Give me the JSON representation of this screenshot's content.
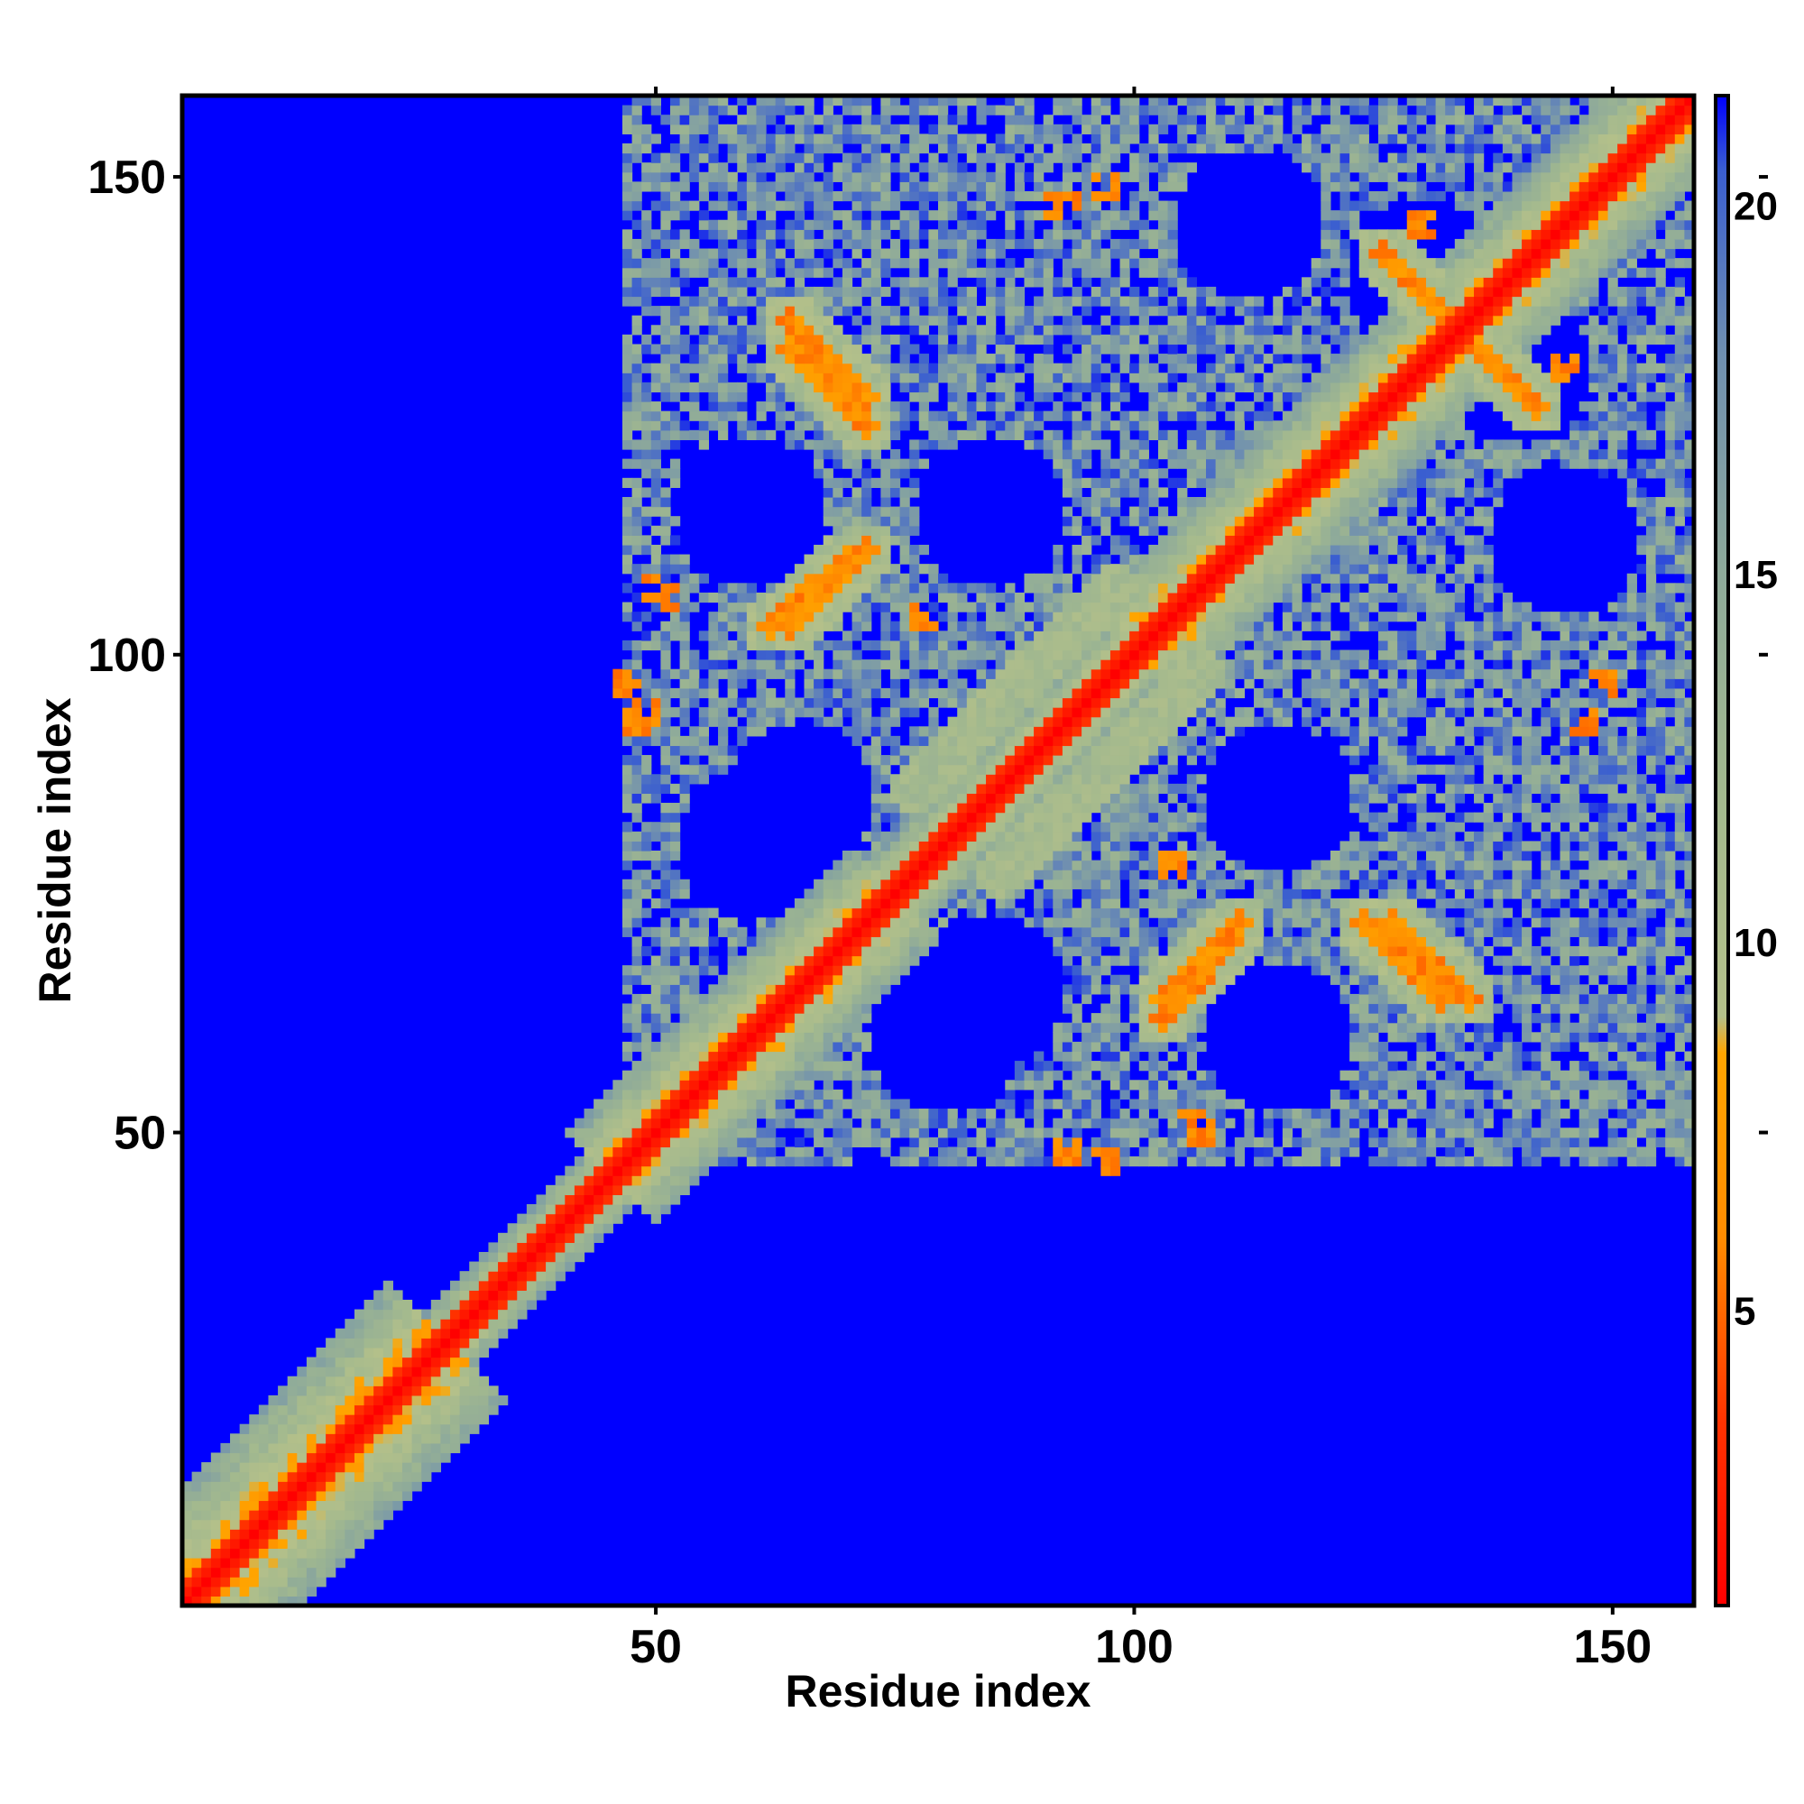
{
  "chart_data": {
    "type": "heatmap",
    "title": "",
    "xlabel": "Residue index",
    "ylabel": "Residue index",
    "xlim": [
      1,
      158
    ],
    "ylim": [
      1,
      158
    ],
    "xticks": [
      50,
      100,
      150
    ],
    "yticks": [
      50,
      100,
      150
    ],
    "grid": false,
    "matrix_size": 158,
    "value_range": [
      1,
      21
    ],
    "colorbar": {
      "ticks": [
        5,
        10,
        15,
        20
      ],
      "range": [
        1,
        21.5
      ],
      "stops": [
        {
          "value": 1,
          "color": "#ff0000"
        },
        {
          "value": 3.5,
          "color": "#ff3300"
        },
        {
          "value": 6,
          "color": "#ff8c00"
        },
        {
          "value": 8.5,
          "color": "#ffa500"
        },
        {
          "value": 9,
          "color": "#b4c08a"
        },
        {
          "value": 12,
          "color": "#a3b98e"
        },
        {
          "value": 15,
          "color": "#8eaa9a"
        },
        {
          "value": 18,
          "color": "#6f8fb0"
        },
        {
          "value": 20.5,
          "color": "#3a5ed0"
        },
        {
          "value": 21.5,
          "color": "#0000ff"
        }
      ]
    },
    "background_color": "#0000ff",
    "description_of_features": {
      "diagonal_band_width": 4,
      "near_diagonal_halos": [
        {
          "start": 1,
          "end": 28,
          "width": 12
        },
        {
          "start": 28,
          "end": 45,
          "width": 5
        },
        {
          "start": 45,
          "end": 75,
          "width": 9
        },
        {
          "start": 75,
          "end": 100,
          "width": 6
        },
        {
          "start": 100,
          "end": 158,
          "width": 9
        }
      ],
      "antiparallel_contacts": [
        {
          "i_range": [
            64,
            72
          ],
          "j_range": [
            132,
            124
          ]
        },
        {
          "i_range": [
            127,
            135
          ],
          "j_range": [
            72,
            64
          ]
        },
        {
          "i_range": [
            126,
            136
          ],
          "j_range": [
            142,
            132
          ]
        },
        {
          "i_range": [
            103,
            110
          ],
          "j_range": [
            62,
            70
          ]
        },
        {
          "i_range": [
            64,
            72
          ],
          "j_range": [
            103,
            111
          ]
        }
      ],
      "parallel_contacts": [
        {
          "i_range": [
            77,
            98
          ],
          "j_range": [
            86,
            107
          ]
        }
      ],
      "contact_clusters": [
        {
          "i": 51,
          "j": 106
        },
        {
          "i": 47,
          "j": 97
        },
        {
          "i": 48,
          "j": 93
        },
        {
          "i": 94,
          "j": 49
        },
        {
          "i": 107,
          "j": 50
        },
        {
          "i": 92,
          "j": 147
        },
        {
          "i": 104,
          "j": 78
        },
        {
          "i": 147,
          "j": 93
        },
        {
          "i": 149,
          "j": 97
        },
        {
          "i": 130,
          "j": 145
        },
        {
          "i": 145,
          "j": 130
        }
      ]
    }
  }
}
